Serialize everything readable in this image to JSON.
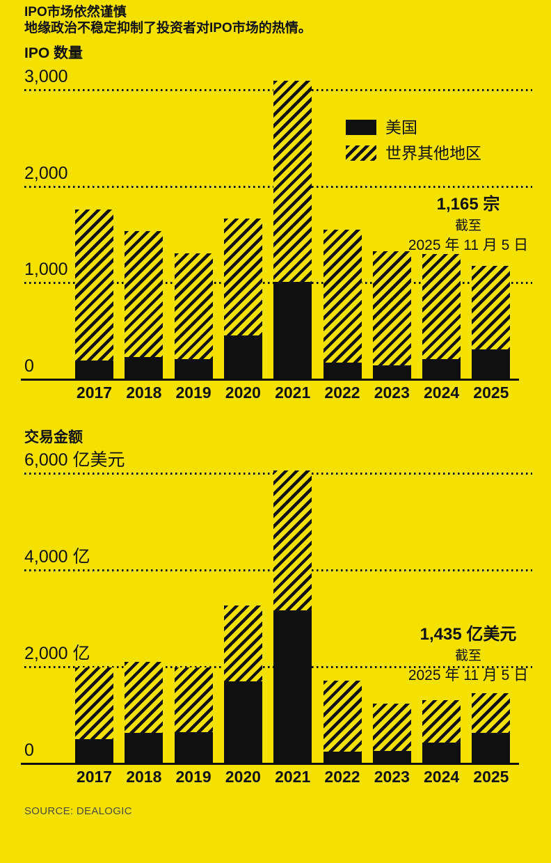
{
  "page": {
    "title": "IPO市场依然谨慎",
    "subtitle": "地缘政治不稳定抑制了投资者对IPO市场的热情。",
    "source": "SOURCE: DEALOGIC",
    "background_color": "#F5E100",
    "ink_color": "#101010"
  },
  "legend": {
    "us_label": "美国",
    "rest_of_world_label": "世界其他地区"
  },
  "chart_data": [
    {
      "type": "bar",
      "stacked": true,
      "title": "IPO 数量",
      "categories": [
        "2017",
        "2018",
        "2019",
        "2020",
        "2021",
        "2022",
        "2023",
        "2024",
        "2025"
      ],
      "series": [
        {
          "name": "美国",
          "style": "solid-black",
          "values": [
            190,
            225,
            200,
            450,
            1000,
            165,
            140,
            200,
            300
          ]
        },
        {
          "name": "世界其他地区",
          "style": "diagonal-stripes",
          "values": [
            1560,
            1305,
            1100,
            1210,
            2090,
            1375,
            1180,
            1090,
            865
          ]
        }
      ],
      "totals": [
        1750,
        1530,
        1300,
        1660,
        3090,
        1540,
        1320,
        1290,
        1165
      ],
      "ylim": [
        0,
        3000
      ],
      "yticks": [
        {
          "value": 3000,
          "label": "3,000"
        },
        {
          "value": 2000,
          "label": "2,000"
        },
        {
          "value": 1000,
          "label": "1,000"
        },
        {
          "value": 0,
          "label": "0"
        }
      ],
      "grid": "dotted-horizontal",
      "legend_position": "inside-top-right",
      "annotation": {
        "value": "1,165 宗",
        "as_of_label": "截至",
        "as_of_date": "2025 年 11 月 5 日"
      }
    },
    {
      "type": "bar",
      "stacked": true,
      "title": "交易金额",
      "categories": [
        "2017",
        "2018",
        "2019",
        "2020",
        "2021",
        "2022",
        "2023",
        "2024",
        "2025"
      ],
      "series": [
        {
          "name": "美国",
          "style": "solid-black",
          "values": [
            490,
            620,
            630,
            1680,
            3150,
            230,
            240,
            420,
            620
          ]
        },
        {
          "name": "世界其他地区",
          "style": "diagonal-stripes",
          "values": [
            1480,
            1470,
            1340,
            1570,
            2900,
            1470,
            980,
            870,
            815
          ]
        }
      ],
      "totals": [
        1970,
        2090,
        1970,
        3250,
        6050,
        1700,
        1220,
        1290,
        1435
      ],
      "ylim": [
        0,
        6000
      ],
      "yticks": [
        {
          "value": 6000,
          "label": "6,000 亿美元"
        },
        {
          "value": 4000,
          "label": "4,000 亿"
        },
        {
          "value": 2000,
          "label": "2,000 亿"
        },
        {
          "value": 0,
          "label": "0"
        }
      ],
      "grid": "dotted-horizontal",
      "legend_position": "none",
      "annotation": {
        "value": "1,435 亿美元",
        "as_of_label": "截至",
        "as_of_date": "2025 年 11 月 5 日"
      }
    }
  ]
}
